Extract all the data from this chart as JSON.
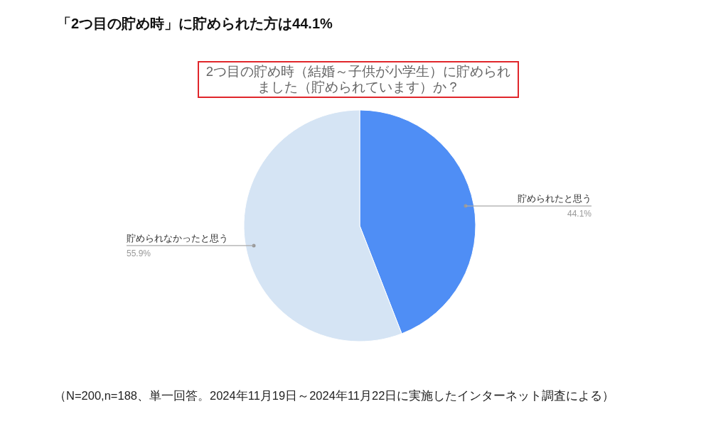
{
  "chart_data": {
    "type": "pie",
    "title": "「2つ目の貯め時」に貯められた方は44.1%",
    "subtitle": "2つ目の貯め時（結婚～子供が小学生）に貯められました（貯められています）か？",
    "categories": [
      "貯められたと思う",
      "貯められなかったと思う"
    ],
    "values": [
      44.1,
      55.9
    ],
    "colors": [
      "#4f8ef5",
      "#d5e4f4"
    ],
    "value_labels": [
      "44.1%",
      "55.9%"
    ],
    "annotations": [
      "（N=200,n=188、単一回答。2024年11月19日～2024年11月22日に実施したインターネット調査による）"
    ]
  }
}
